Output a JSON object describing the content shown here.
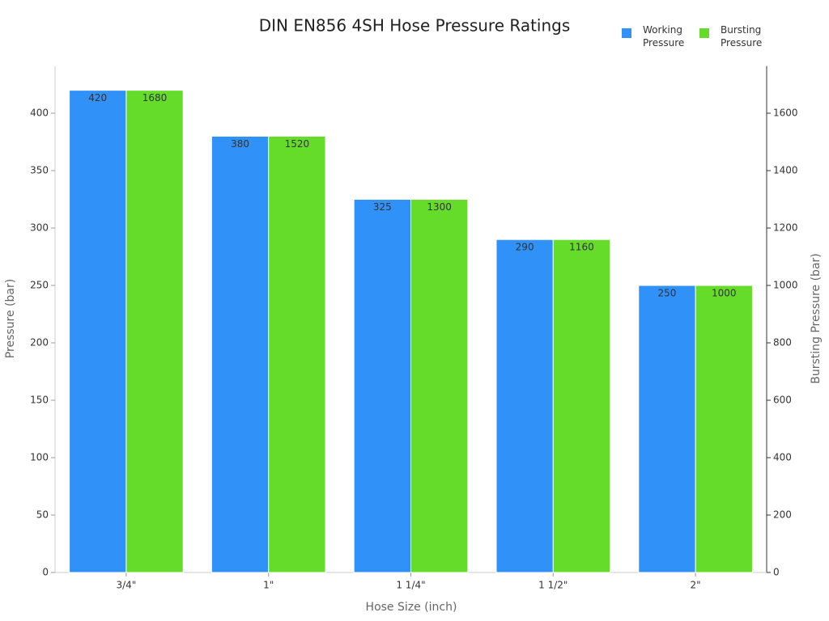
{
  "chart_data": {
    "type": "bar",
    "title": "DIN EN856 4SH Hose Pressure Ratings",
    "x_label": "Hose Size (inch)",
    "y_label": "Pressure (bar)",
    "y2_label": "Bursting Pressure (bar)",
    "categories": [
      "3/4\"",
      "1\"",
      "1 1/4\"",
      "1 1/2\"",
      "2\""
    ],
    "series": [
      {
        "name": "Working Pressure",
        "color": "#3091f8",
        "values": [
          420,
          380,
          325,
          290,
          250
        ]
      },
      {
        "name": "Bursting Pressure",
        "color": "#66dc2a",
        "axis": "y2",
        "values": [
          1680,
          1520,
          1300,
          1160,
          1000
        ]
      }
    ],
    "ylim": [
      0,
      441
    ],
    "yticks": [
      0,
      50,
      100,
      150,
      200,
      250,
      300,
      350,
      400
    ],
    "y2lim": [
      0,
      1764
    ],
    "y2ticks": [
      0,
      200,
      400,
      600,
      800,
      1000,
      1200,
      1400,
      1600
    ],
    "grid": false,
    "legend": "top-right"
  }
}
